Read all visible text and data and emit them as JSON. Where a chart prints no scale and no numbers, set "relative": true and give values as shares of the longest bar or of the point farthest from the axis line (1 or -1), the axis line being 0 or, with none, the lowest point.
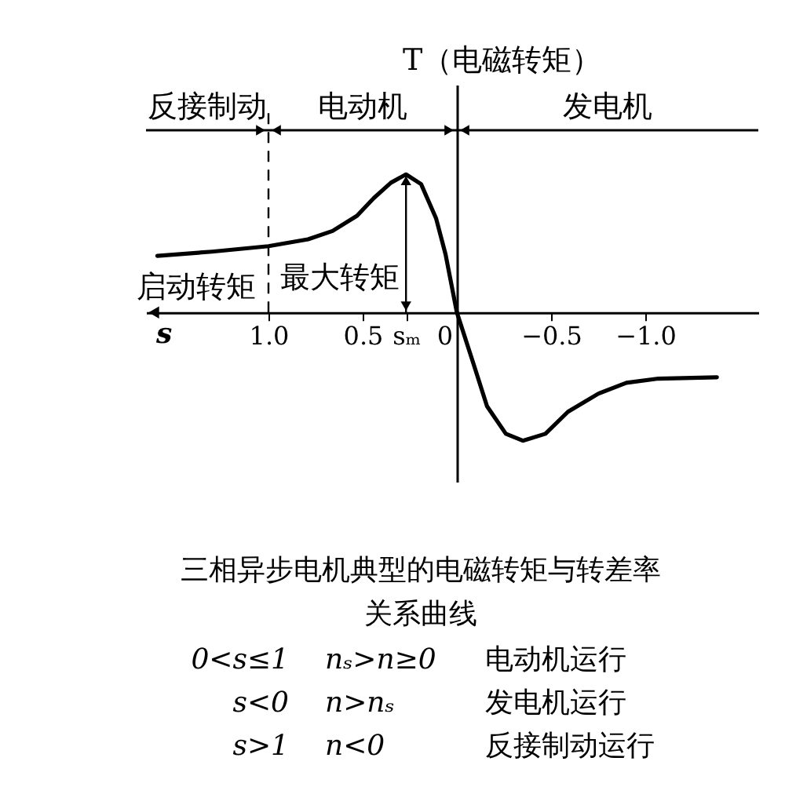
{
  "chart_data": {
    "type": "line",
    "title": "三相异步电机典型的电磁转矩与转差率关系曲线",
    "xlabel": "s",
    "ylabel": "T（电磁转矩）",
    "relative": true,
    "x": [
      1.59,
      1.3,
      1.0,
      0.79,
      0.66,
      0.53,
      0.44,
      0.35,
      0.27,
      0.19,
      0.11,
      0.06,
      0,
      -0.09,
      -0.16,
      -0.26,
      -0.35,
      -0.47,
      -0.59,
      -0.75,
      -0.9,
      -1.07,
      -1.38
    ],
    "series": [
      {
        "color": "#000000",
        "values": [
          0.41,
          0.44,
          0.48,
          0.53,
          0.59,
          0.7,
          0.83,
          0.94,
          1.0,
          0.93,
          0.68,
          0.42,
          0,
          -0.38,
          -0.68,
          -0.88,
          -0.93,
          -0.88,
          -0.72,
          -0.59,
          -0.51,
          -0.48,
          -0.47
        ]
      }
    ],
    "xlim": [
      1.65,
      -1.6
    ],
    "xticks": [
      {
        "value": 1.0,
        "label": "1.0"
      },
      0.5,
      {
        "value": 0.27,
        "label": "sₘ"
      },
      0,
      {
        "value": -0.5,
        "label": "−0.5"
      },
      {
        "value": -1.0,
        "label": "−1.0"
      }
    ],
    "ref_lines": [
      {
        "axis": "x",
        "value": 1.0,
        "line_style": "dashed"
      }
    ],
    "annotations": [
      "反接制动",
      "电动机",
      "发电机",
      {
        "text": "启动转矩",
        "x": 1.0,
        "y": 0.48
      },
      {
        "text": "最大转矩",
        "x": 0.27,
        "y": 1.0
      },
      "0<s≤1",
      "nₛ>n≥0",
      "电动机运行",
      "s<0",
      "n>nₛ",
      "发电机运行",
      "s>1",
      "n<0",
      "反接制动运行"
    ]
  }
}
